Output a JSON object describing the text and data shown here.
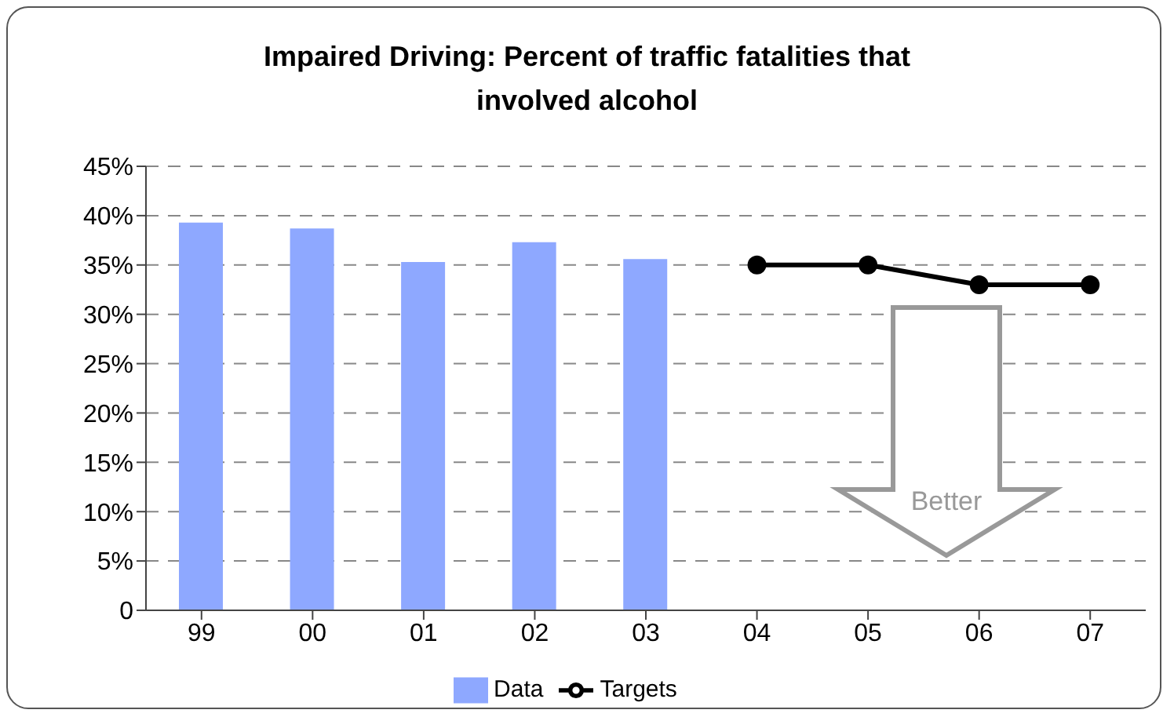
{
  "chart_data": {
    "type": "bar",
    "title": "Impaired Driving: Percent of traffic fatalities that involved alcohol",
    "categories": [
      "99",
      "00",
      "01",
      "02",
      "03",
      "04",
      "05",
      "06",
      "07"
    ],
    "series": [
      {
        "name": "Data",
        "color": "#8ea8ff",
        "values": [
          39.3,
          38.7,
          35.3,
          37.3,
          35.6,
          null,
          null,
          null,
          null
        ]
      },
      {
        "name": "Targets",
        "type": "line",
        "color": "#000000",
        "values": [
          null,
          null,
          null,
          null,
          null,
          35,
          35,
          33,
          33
        ]
      }
    ],
    "ylim": [
      0,
      45
    ],
    "yticks": [
      0,
      {
        "value": 5,
        "label": "5%"
      },
      {
        "value": 10,
        "label": "10%"
      },
      {
        "value": 15,
        "label": "15%"
      },
      {
        "value": 20,
        "label": "20%"
      },
      {
        "value": 25,
        "label": "25%"
      },
      {
        "value": 30,
        "label": "30%"
      },
      {
        "value": 35,
        "label": "35%"
      },
      {
        "value": 40,
        "label": "40%"
      },
      {
        "value": 45,
        "label": "45%"
      }
    ],
    "grid": "y",
    "legend": "bottom",
    "marker": "circle",
    "annotations": [
      "Better"
    ]
  }
}
